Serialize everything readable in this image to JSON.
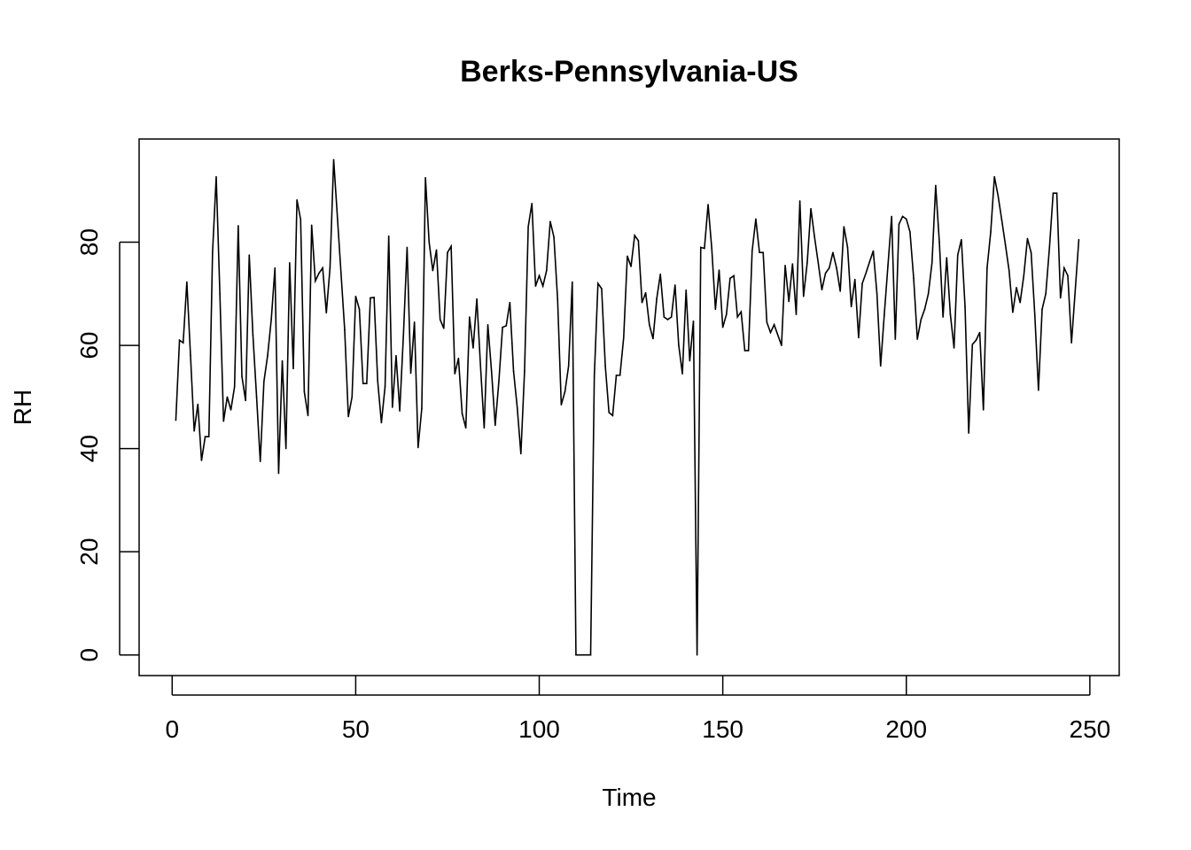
{
  "chart_data": {
    "type": "line",
    "title": "Berks-Pennsylvania-US",
    "xlabel": "Time",
    "ylabel": "RH",
    "xlim": [
      -9,
      258
    ],
    "ylim": [
      -4,
      100
    ],
    "x_ticks": [
      0,
      50,
      100,
      150,
      200,
      250
    ],
    "x_tick_labels": [
      "0",
      "50",
      "100",
      "150",
      "200",
      "250"
    ],
    "y_ticks": [
      0,
      20,
      40,
      60,
      80
    ],
    "y_tick_labels": [
      "0",
      "20",
      "40",
      "60",
      "80"
    ],
    "grid": false,
    "legend": "none",
    "line_color": "#000000",
    "series": [
      {
        "name": "RH",
        "x_start": 1,
        "values": [
          45.5,
          61,
          60.5,
          72.3,
          58,
          43.4,
          48.6,
          37.7,
          42.3,
          42.3,
          78,
          92.7,
          70,
          45.3,
          50,
          47.5,
          52,
          83.2,
          54,
          49.3,
          77.5,
          62,
          50,
          37.5,
          53,
          58,
          65,
          75,
          35.2,
          57,
          40,
          76,
          55.5,
          88.2,
          84.4,
          51,
          46.4,
          83.3,
          72.5,
          74,
          75,
          66.3,
          75,
          96,
          85,
          74,
          63,
          46.2,
          50,
          69.5,
          67,
          52.6,
          52.6,
          69.2,
          69.3,
          53,
          45,
          52,
          81.2,
          48,
          58,
          47.3,
          62,
          79,
          54.6,
          64.5,
          40.2,
          47.8,
          92.5,
          80,
          74.5,
          78.5,
          65,
          63.3,
          78,
          79.2,
          54.5,
          57.5,
          46.8,
          44,
          65.5,
          59.5,
          69,
          56,
          44,
          64,
          55,
          44.5,
          53,
          63.5,
          63.8,
          68.3,
          55,
          48,
          39,
          55,
          83,
          87.5,
          71.5,
          73.5,
          71.5,
          74.5,
          84,
          81,
          69,
          48.5,
          51,
          56,
          72.3,
          0,
          0,
          0,
          0,
          0,
          54,
          72,
          71,
          56,
          47,
          46.4,
          54.2,
          54.2,
          61.5,
          77.3,
          75.3,
          81.3,
          80.3,
          68.3,
          70.2,
          64,
          61.3,
          69,
          73.8,
          65.5,
          65,
          65.5,
          71.7,
          60,
          54.5,
          70.7,
          57,
          64.7,
          0,
          79,
          78.8,
          87.3,
          78.8,
          67,
          74.6,
          63.5,
          66,
          73,
          73.5,
          65.5,
          66.5,
          59,
          59,
          78.3,
          84.5,
          78,
          78,
          64.5,
          62.5,
          64,
          62,
          60,
          75.5,
          68.5,
          75.8,
          66,
          88,
          69.5,
          76,
          86.5,
          81,
          76,
          70.8,
          74,
          75,
          78,
          75,
          70.5,
          83,
          79,
          67.5,
          72.8,
          61.5,
          72,
          74,
          76.2,
          78.3,
          70,
          56,
          66,
          75.5,
          85,
          61.2,
          83.5,
          85,
          84.5,
          82,
          73,
          61.2,
          65,
          67,
          70,
          76,
          91,
          80,
          65.5,
          77,
          66,
          59.5,
          77.5,
          80.5,
          67.5,
          43,
          60.2,
          61,
          62.5,
          47.5,
          75,
          82,
          92.7,
          89,
          84.3,
          79.5,
          74.5,
          66.4,
          71.2,
          68.3,
          73.5,
          80.7,
          78,
          66,
          51.3,
          67,
          70,
          79,
          89.5,
          89.5,
          69.2,
          75,
          73.5,
          60.5,
          70.5,
          80.5
        ]
      }
    ]
  }
}
